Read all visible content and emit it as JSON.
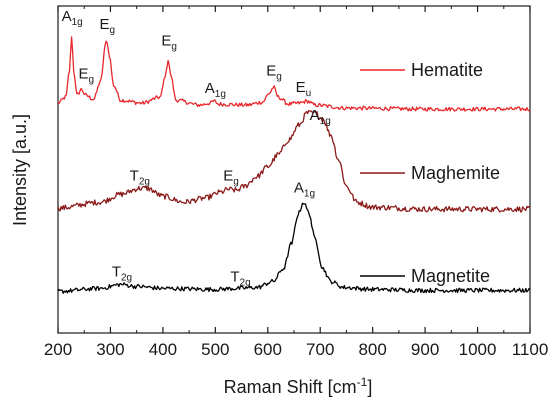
{
  "chart_data": {
    "type": "line",
    "xlabel": "Raman Shift [cm",
    "xlabel_sup": "-1",
    "xlabel_suffix": "]",
    "ylabel": "Intensity [a.u.]",
    "xlim": [
      200,
      1100
    ],
    "x_ticks": [
      "200",
      "300",
      "400",
      "500",
      "600",
      "700",
      "800",
      "900",
      "1000",
      "1100"
    ],
    "y_ticks": "none",
    "grid": false,
    "legend_position": "right",
    "series": [
      {
        "name": "Hematite",
        "color": "#e8262b",
        "baseline": 2.55,
        "noise": 0.02,
        "points": [
          [
            200,
            2.62
          ],
          [
            215,
            2.68
          ],
          [
            222,
            2.95
          ],
          [
            226,
            3.3
          ],
          [
            230,
            2.95
          ],
          [
            236,
            2.7
          ],
          [
            245,
            2.76
          ],
          [
            252,
            2.7
          ],
          [
            268,
            2.66
          ],
          [
            282,
            2.85
          ],
          [
            290,
            3.2
          ],
          [
            293,
            3.25
          ],
          [
            298,
            3.1
          ],
          [
            306,
            2.8
          ],
          [
            320,
            2.65
          ],
          [
            360,
            2.62
          ],
          [
            395,
            2.68
          ],
          [
            405,
            2.9
          ],
          [
            410,
            3.06
          ],
          [
            415,
            2.9
          ],
          [
            425,
            2.65
          ],
          [
            470,
            2.6
          ],
          [
            490,
            2.62
          ],
          [
            498,
            2.64
          ],
          [
            506,
            2.61
          ],
          [
            560,
            2.6
          ],
          [
            590,
            2.63
          ],
          [
            603,
            2.72
          ],
          [
            611,
            2.78
          ],
          [
            620,
            2.68
          ],
          [
            640,
            2.61
          ],
          [
            660,
            2.62
          ],
          [
            675,
            2.64
          ],
          [
            690,
            2.6
          ],
          [
            750,
            2.57
          ],
          [
            900,
            2.56
          ],
          [
            1100,
            2.56
          ]
        ]
      },
      {
        "name": "Maghemite",
        "color": "#8b1a1a",
        "baseline": 1.55,
        "noise": 0.028,
        "points": [
          [
            200,
            1.56
          ],
          [
            280,
            1.62
          ],
          [
            320,
            1.7
          ],
          [
            355,
            1.76
          ],
          [
            370,
            1.76
          ],
          [
            400,
            1.68
          ],
          [
            440,
            1.62
          ],
          [
            480,
            1.66
          ],
          [
            510,
            1.72
          ],
          [
            525,
            1.75
          ],
          [
            540,
            1.74
          ],
          [
            555,
            1.78
          ],
          [
            580,
            1.88
          ],
          [
            600,
            1.98
          ],
          [
            620,
            2.1
          ],
          [
            640,
            2.25
          ],
          [
            660,
            2.4
          ],
          [
            675,
            2.52
          ],
          [
            690,
            2.52
          ],
          [
            705,
            2.46
          ],
          [
            720,
            2.3
          ],
          [
            735,
            2.05
          ],
          [
            750,
            1.78
          ],
          [
            770,
            1.62
          ],
          [
            800,
            1.57
          ],
          [
            900,
            1.55
          ],
          [
            1100,
            1.55
          ]
        ]
      },
      {
        "name": "Magnetite",
        "color": "#000000",
        "baseline": 0.72,
        "noise": 0.022,
        "points": [
          [
            200,
            0.72
          ],
          [
            280,
            0.75
          ],
          [
            320,
            0.79
          ],
          [
            350,
            0.77
          ],
          [
            400,
            0.75
          ],
          [
            500,
            0.74
          ],
          [
            540,
            0.75
          ],
          [
            580,
            0.76
          ],
          [
            610,
            0.82
          ],
          [
            630,
            0.95
          ],
          [
            645,
            1.2
          ],
          [
            658,
            1.5
          ],
          [
            668,
            1.62
          ],
          [
            678,
            1.52
          ],
          [
            690,
            1.25
          ],
          [
            705,
            0.95
          ],
          [
            720,
            0.82
          ],
          [
            745,
            0.76
          ],
          [
            800,
            0.74
          ],
          [
            900,
            0.73
          ],
          [
            1100,
            0.73
          ]
        ]
      }
    ],
    "annotations": [
      {
        "main": "A",
        "sub": "1g",
        "x": 227,
        "y": 3.45,
        "color": "#1a1a1a"
      },
      {
        "main": "E",
        "sub": "g",
        "x": 254,
        "y": 2.87,
        "color": "#1a1a1a"
      },
      {
        "main": "E",
        "sub": "g",
        "x": 294,
        "y": 3.37,
        "color": "#1a1a1a"
      },
      {
        "main": "E",
        "sub": "g",
        "x": 412,
        "y": 3.2,
        "color": "#1a1a1a"
      },
      {
        "main": "A",
        "sub": "1g",
        "x": 500,
        "y": 2.72,
        "color": "#1a1a1a"
      },
      {
        "main": "E",
        "sub": "g",
        "x": 612,
        "y": 2.9,
        "color": "#1a1a1a"
      },
      {
        "main": "E",
        "sub": "u",
        "x": 668,
        "y": 2.73,
        "color": "#1a1a1a"
      },
      {
        "main": "A",
        "sub": "1g",
        "x": 700,
        "y": 2.45,
        "color": "#1a1a1a"
      },
      {
        "main": "T",
        "sub": "2g",
        "x": 356,
        "y": 1.84,
        "color": "#1a1a1a"
      },
      {
        "main": "E",
        "sub": "g",
        "x": 530,
        "y": 1.84,
        "color": "#1a1a1a"
      },
      {
        "main": "A",
        "sub": "1g",
        "x": 670,
        "y": 1.72,
        "color": "#1a1a1a"
      },
      {
        "main": "T",
        "sub": "2g",
        "x": 322,
        "y": 0.87,
        "color": "#1a1a1a"
      },
      {
        "main": "T",
        "sub": "2g",
        "x": 548,
        "y": 0.82,
        "color": "#1a1a1a"
      }
    ]
  }
}
